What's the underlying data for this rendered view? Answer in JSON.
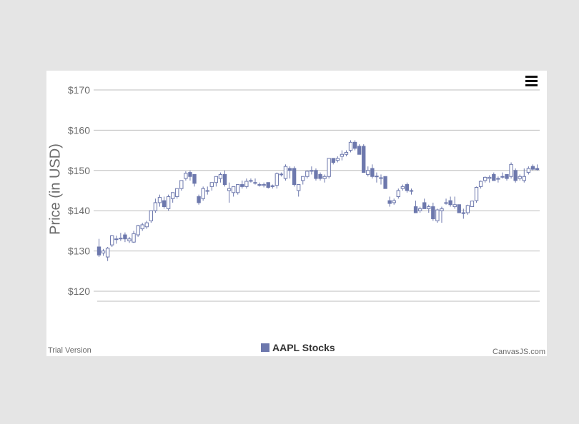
{
  "credits": {
    "trial": "Trial Version",
    "brand": "CanvasJS.com"
  },
  "colors": {
    "series": "#6D78AD",
    "grid": "#bdbdbd",
    "tick": "#6b6b6b"
  },
  "toolbar": {
    "menu_icon": "hamburger-menu-icon"
  },
  "chart_data": {
    "type": "candlestick",
    "title": "",
    "ylabel": "Price (in USD)",
    "xlabel": "",
    "ylim": [
      113,
      173
    ],
    "yticks": [
      120,
      130,
      140,
      150,
      160,
      170
    ],
    "ytick_format": "$",
    "grid": true,
    "legend_position": "bottom-center",
    "series": [
      {
        "name": "AAPL Stocks",
        "ohlc": [
          [
            131.0,
            133.0,
            128.5,
            129.0
          ],
          [
            129.5,
            130.5,
            128.8,
            130.0
          ],
          [
            128.5,
            131.0,
            127.5,
            130.7
          ],
          [
            131.5,
            134.0,
            131.0,
            133.8
          ],
          [
            133.0,
            133.8,
            131.8,
            133.0
          ],
          [
            133.0,
            134.5,
            132.5,
            133.2
          ],
          [
            134.0,
            134.6,
            132.2,
            133.0
          ],
          [
            132.5,
            133.5,
            132.0,
            133.0
          ],
          [
            132.2,
            135.0,
            132.0,
            134.3
          ],
          [
            134.0,
            136.5,
            133.5,
            136.3
          ],
          [
            135.5,
            137.0,
            135.0,
            136.5
          ],
          [
            136.0,
            137.5,
            135.5,
            137.0
          ],
          [
            137.5,
            140.0,
            137.0,
            140.0
          ],
          [
            140.0,
            143.0,
            139.5,
            142.0
          ],
          [
            142.0,
            144.0,
            141.0,
            143.3
          ],
          [
            142.5,
            143.5,
            140.5,
            141.0
          ],
          [
            140.5,
            144.0,
            140.0,
            143.5
          ],
          [
            143.0,
            144.5,
            142.0,
            144.5
          ],
          [
            143.5,
            145.5,
            143.0,
            145.5
          ],
          [
            145.5,
            147.5,
            145.0,
            147.5
          ],
          [
            148.0,
            149.8,
            147.5,
            149.3
          ],
          [
            149.5,
            150.0,
            147.5,
            148.5
          ],
          [
            149.0,
            149.0,
            146.0,
            146.8
          ],
          [
            143.5,
            144.0,
            141.5,
            142.0
          ],
          [
            143.0,
            146.0,
            142.5,
            145.5
          ],
          [
            145.0,
            146.0,
            144.0,
            145.0
          ],
          [
            146.0,
            147.0,
            145.0,
            147.0
          ],
          [
            147.0,
            148.5,
            146.0,
            148.5
          ],
          [
            148.0,
            149.5,
            147.0,
            149.0
          ],
          [
            149.0,
            150.0,
            146.0,
            146.5
          ],
          [
            145.0,
            147.0,
            142.0,
            145.5
          ],
          [
            144.5,
            146.0,
            143.5,
            146.0
          ],
          [
            144.5,
            146.5,
            144.0,
            146.5
          ],
          [
            146.5,
            147.5,
            145.5,
            146.0
          ],
          [
            146.0,
            148.0,
            145.5,
            147.3
          ],
          [
            147.5,
            148.0,
            147.0,
            147.5
          ],
          [
            147.0,
            148.0,
            146.5,
            147.0
          ],
          [
            146.5,
            147.0,
            146.0,
            146.3
          ],
          [
            146.3,
            147.0,
            145.8,
            146.5
          ],
          [
            147.0,
            147.0,
            145.5,
            145.8
          ],
          [
            146.2,
            146.5,
            145.5,
            146.0
          ],
          [
            146.3,
            149.5,
            145.5,
            149.2
          ],
          [
            149.0,
            149.5,
            148.5,
            149.1
          ],
          [
            148.0,
            151.5,
            147.5,
            151.0
          ],
          [
            150.5,
            151.0,
            148.0,
            150.0
          ],
          [
            150.5,
            151.0,
            146.0,
            146.5
          ],
          [
            145.0,
            146.5,
            143.5,
            146.5
          ],
          [
            147.5,
            148.5,
            146.5,
            148.5
          ],
          [
            148.5,
            150.0,
            148.0,
            149.8
          ],
          [
            149.8,
            151.0,
            149.0,
            150.0
          ],
          [
            150.0,
            150.5,
            147.5,
            148.0
          ],
          [
            149.0,
            149.5,
            147.5,
            148.0
          ],
          [
            148.0,
            149.0,
            147.0,
            148.5
          ],
          [
            148.5,
            153.0,
            148.0,
            153.0
          ],
          [
            153.0,
            153.0,
            151.5,
            152.0
          ],
          [
            152.5,
            153.5,
            152.0,
            153.0
          ],
          [
            153.5,
            155.0,
            152.5,
            154.0
          ],
          [
            154.0,
            155.0,
            153.5,
            154.5
          ],
          [
            155.0,
            157.5,
            154.5,
            157.0
          ],
          [
            157.0,
            157.5,
            155.0,
            155.5
          ],
          [
            156.0,
            156.5,
            154.0,
            154.0
          ],
          [
            156.0,
            156.5,
            149.5,
            149.5
          ],
          [
            149.0,
            151.0,
            148.5,
            150.0
          ],
          [
            150.5,
            151.5,
            148.0,
            148.5
          ],
          [
            148.5,
            149.5,
            147.0,
            148.6
          ],
          [
            148.0,
            149.0,
            146.5,
            148.2
          ],
          [
            148.5,
            148.5,
            145.5,
            145.5
          ],
          [
            142.5,
            143.5,
            141.0,
            141.8
          ],
          [
            142.0,
            143.0,
            141.5,
            142.5
          ],
          [
            143.5,
            145.5,
            143.0,
            145.0
          ],
          [
            145.5,
            146.5,
            145.0,
            146.0
          ],
          [
            146.5,
            147.0,
            144.5,
            145.0
          ],
          [
            145.0,
            145.5,
            144.0,
            145.0
          ],
          [
            141.0,
            142.5,
            139.5,
            139.5
          ],
          [
            140.0,
            141.0,
            139.5,
            140.5
          ],
          [
            142.0,
            143.0,
            140.5,
            140.5
          ],
          [
            140.5,
            141.5,
            139.5,
            141.0
          ],
          [
            141.0,
            142.0,
            137.5,
            138.0
          ],
          [
            137.5,
            140.5,
            137.0,
            140.2
          ],
          [
            140.0,
            141.0,
            137.0,
            140.5
          ],
          [
            142.0,
            143.0,
            141.5,
            142.0
          ],
          [
            142.5,
            143.5,
            141.0,
            141.5
          ],
          [
            141.0,
            143.5,
            140.5,
            141.5
          ],
          [
            141.5,
            141.5,
            139.5,
            139.5
          ],
          [
            139.5,
            140.5,
            138.0,
            139.3
          ],
          [
            139.5,
            141.5,
            139.0,
            141.3
          ],
          [
            141.0,
            142.5,
            141.0,
            142.4
          ],
          [
            142.5,
            146.0,
            142.0,
            145.8
          ],
          [
            146.0,
            147.5,
            145.5,
            147.3
          ],
          [
            147.5,
            148.5,
            147.0,
            148.3
          ],
          [
            148.0,
            148.8,
            147.0,
            148.3
          ],
          [
            149.0,
            149.5,
            147.5,
            147.5
          ],
          [
            148.0,
            148.5,
            147.0,
            148.0
          ],
          [
            148.5,
            149.5,
            148.0,
            148.5
          ],
          [
            149.0,
            149.0,
            147.5,
            148.0
          ],
          [
            148.5,
            152.0,
            148.0,
            151.5
          ],
          [
            150.0,
            150.5,
            147.0,
            147.5
          ],
          [
            148.0,
            149.0,
            147.5,
            148.5
          ],
          [
            147.5,
            150.5,
            147.0,
            148.5
          ],
          [
            149.5,
            151.0,
            149.0,
            150.5
          ],
          [
            151.0,
            151.5,
            150.0,
            150.3
          ],
          [
            150.5,
            151.5,
            150.0,
            150.2
          ]
        ]
      }
    ]
  }
}
